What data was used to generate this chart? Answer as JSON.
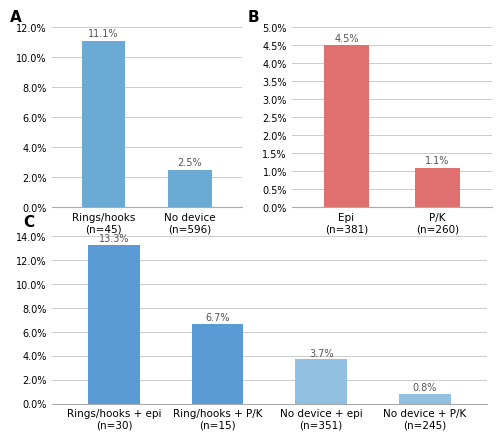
{
  "A": {
    "categories": [
      "Rings/hooks\n(n=45)",
      "No device\n(n=596)"
    ],
    "values": [
      11.1,
      2.5
    ],
    "bar_color": "#6aaad4",
    "ylim": [
      0,
      12
    ],
    "yticks": [
      0,
      2.0,
      4.0,
      6.0,
      8.0,
      10.0,
      12.0
    ],
    "ytick_labels": [
      "0.0%",
      "2.0%",
      "4.0%",
      "6.0%",
      "8.0%",
      "10.0%",
      "12.0%"
    ],
    "label": "A",
    "bar_labels": [
      "11.1%",
      "2.5%"
    ]
  },
  "B": {
    "categories": [
      "Epi\n(n=381)",
      "P/K\n(n=260)"
    ],
    "values": [
      4.5,
      1.1
    ],
    "bar_color": "#e07070",
    "ylim": [
      0,
      5
    ],
    "yticks": [
      0,
      0.5,
      1.0,
      1.5,
      2.0,
      2.5,
      3.0,
      3.5,
      4.0,
      4.5,
      5.0
    ],
    "ytick_labels": [
      "0.0%",
      "0.5%",
      "1.0%",
      "1.5%",
      "2.0%",
      "2.5%",
      "3.0%",
      "3.5%",
      "4.0%",
      "4.5%",
      "5.0%"
    ],
    "label": "B",
    "bar_labels": [
      "4.5%",
      "1.1%"
    ]
  },
  "C": {
    "categories": [
      "Rings/hooks + epi\n(n=30)",
      "Ring/hooks + P/K\n(n=15)",
      "No device + epi\n(n=351)",
      "No device + P/K\n(n=245)"
    ],
    "values": [
      13.3,
      6.7,
      3.7,
      0.8
    ],
    "bar_colors": [
      "#5b9bd5",
      "#5b9bd5",
      "#92c0e0",
      "#92c0e0"
    ],
    "ylim": [
      0,
      14
    ],
    "yticks": [
      0,
      2.0,
      4.0,
      6.0,
      8.0,
      10.0,
      12.0,
      14.0
    ],
    "ytick_labels": [
      "0.0%",
      "2.0%",
      "4.0%",
      "6.0%",
      "8.0%",
      "10.0%",
      "12.0%",
      "14.0%"
    ],
    "label": "C",
    "bar_labels": [
      "13.3%",
      "6.7%",
      "3.7%",
      "0.8%"
    ]
  },
  "background_color": "#ffffff",
  "grid_color": "#cccccc",
  "tick_fontsize": 7,
  "xlabel_fontsize": 7.5,
  "bar_label_fontsize": 7,
  "panel_label_fontsize": 11
}
